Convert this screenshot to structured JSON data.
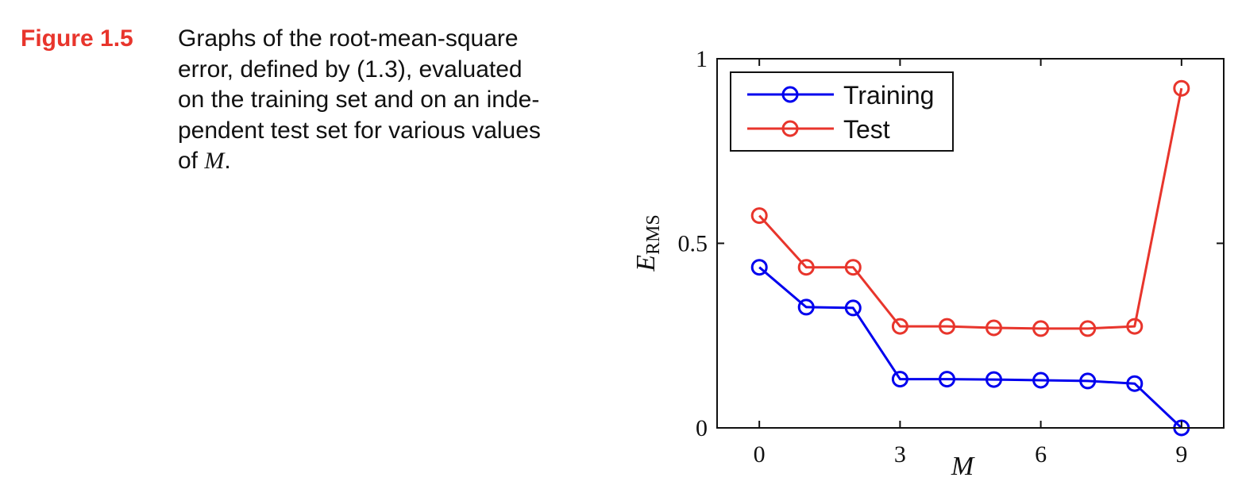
{
  "figure": {
    "label": "Figure 1.5",
    "caption_lines": [
      "Graphs of the root-mean-square",
      "error, defined by (1.3), evaluated",
      "on the training set and on an inde-",
      "pendent test set for various values"
    ],
    "caption_last_prefix": "of ",
    "caption_last_math": "M",
    "caption_last_suffix": "."
  },
  "chart_data": {
    "type": "line",
    "xlabel": "M",
    "ylabel_main": "E",
    "ylabel_sub": "RMS",
    "xlim": [
      -0.9,
      9.9
    ],
    "ylim": [
      0,
      1
    ],
    "x_ticks": [
      0,
      3,
      6,
      9
    ],
    "x_tick_labels": [
      "0",
      "3",
      "6",
      "9"
    ],
    "y_ticks": [
      0,
      0.5,
      1
    ],
    "y_tick_labels": [
      "0",
      "0.5",
      "1"
    ],
    "grid": false,
    "legend_position": "top-left",
    "x": [
      0,
      1,
      2,
      3,
      4,
      5,
      6,
      7,
      8,
      9
    ],
    "series": [
      {
        "name": "Training",
        "color": "#0000ee",
        "marker": "circle",
        "values": [
          0.435,
          0.327,
          0.325,
          0.132,
          0.132,
          0.131,
          0.129,
          0.127,
          0.12,
          0.0
        ]
      },
      {
        "name": "Test",
        "color": "#e8352c",
        "marker": "circle",
        "values": [
          0.575,
          0.435,
          0.435,
          0.275,
          0.275,
          0.271,
          0.269,
          0.269,
          0.275,
          0.92
        ]
      }
    ]
  }
}
